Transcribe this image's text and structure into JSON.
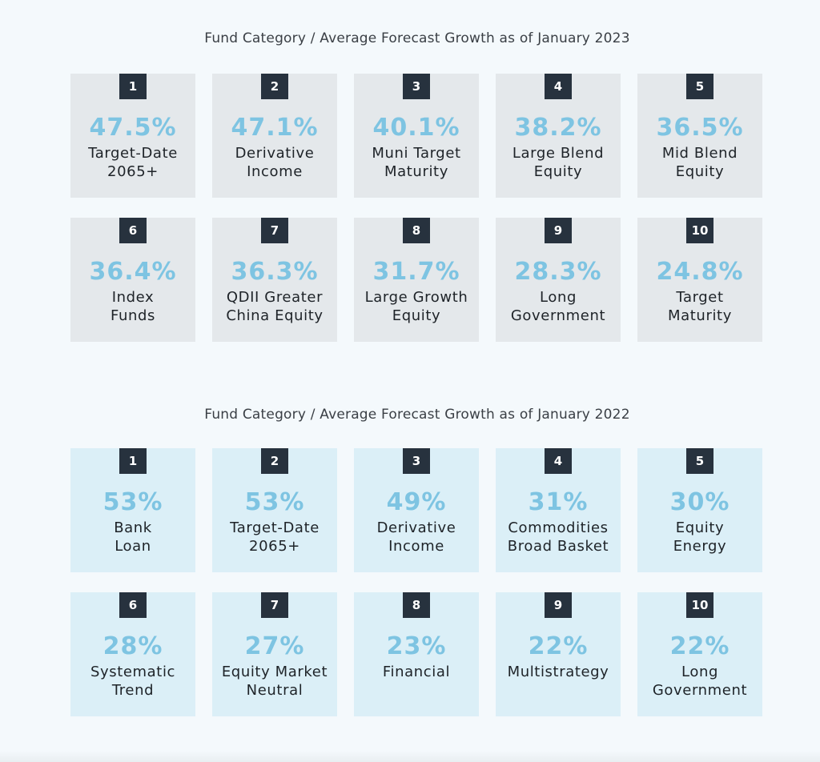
{
  "sections": [
    {
      "title": "Fund Category / Average Forecast Growth as of January 2023",
      "cards": [
        {
          "rank": "1",
          "value": "47.5%",
          "label": [
            "Target-Date",
            "2065+"
          ]
        },
        {
          "rank": "2",
          "value": "47.1%",
          "label": [
            "Derivative",
            "Income"
          ]
        },
        {
          "rank": "3",
          "value": "40.1%",
          "label": [
            "Muni Target",
            "Maturity"
          ]
        },
        {
          "rank": "4",
          "value": "38.2%",
          "label": [
            "Large Blend",
            "Equity"
          ]
        },
        {
          "rank": "5",
          "value": "36.5%",
          "label": [
            "Mid Blend",
            "Equity"
          ]
        },
        {
          "rank": "6",
          "value": "36.4%",
          "label": [
            "Index",
            "Funds"
          ]
        },
        {
          "rank": "7",
          "value": "36.3%",
          "label": [
            "QDII Greater",
            "China Equity"
          ]
        },
        {
          "rank": "8",
          "value": "31.7%",
          "label": [
            "Large Growth",
            "Equity"
          ]
        },
        {
          "rank": "9",
          "value": "28.3%",
          "label": [
            "Long",
            "Government"
          ]
        },
        {
          "rank": "10",
          "value": "24.8%",
          "label": [
            "Target",
            "Maturity"
          ]
        }
      ]
    },
    {
      "title": "Fund Category / Average Forecast Growth as of January 2022",
      "cards": [
        {
          "rank": "1",
          "value": "53%",
          "label": [
            "Bank",
            "Loan"
          ]
        },
        {
          "rank": "2",
          "value": "53%",
          "label": [
            "Target-Date",
            "2065+"
          ]
        },
        {
          "rank": "3",
          "value": "49%",
          "label": [
            "Derivative",
            "Income"
          ]
        },
        {
          "rank": "4",
          "value": "31%",
          "label": [
            "Commodities",
            "Broad Basket"
          ]
        },
        {
          "rank": "5",
          "value": "30%",
          "label": [
            "Equity",
            "Energy"
          ]
        },
        {
          "rank": "6",
          "value": "28%",
          "label": [
            "Systematic",
            "Trend"
          ]
        },
        {
          "rank": "7",
          "value": "27%",
          "label": [
            "Equity Market",
            "Neutral"
          ]
        },
        {
          "rank": "8",
          "value": "23%",
          "label": [
            "Financial"
          ]
        },
        {
          "rank": "9",
          "value": "22%",
          "label": [
            "Multistrategy"
          ]
        },
        {
          "rank": "10",
          "value": "22%",
          "label": [
            "Long",
            "Government"
          ]
        }
      ]
    }
  ],
  "colors": {
    "value_text": "#7ec4e2",
    "rank_badge": "#27323e",
    "card_2023": "#e4e8eb",
    "card_2022": "#dbeff7",
    "page_background": "#f4f9fc"
  }
}
